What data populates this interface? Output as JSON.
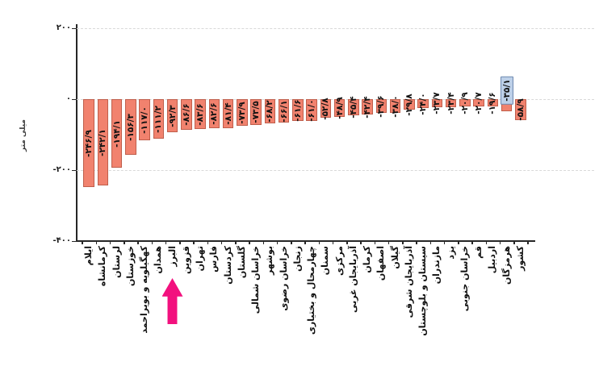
{
  "chart_data": {
    "type": "bar",
    "title": "",
    "unit_label": "میلی متر",
    "ylim": [
      -400,
      200
    ],
    "grid": "horizontal dashed",
    "legend": "none",
    "bar_color": "#f1826e",
    "bar_border_color": "#bf5e4b",
    "grid_color": "#d9d9d9",
    "axis_color": "#262626",
    "yticks": [
      {
        "value": 200,
        "label": "۲۰۰"
      },
      {
        "value": 0,
        "label": "۰"
      },
      {
        "value": -200,
        "label": "-۲۰۰"
      },
      {
        "value": -400,
        "label": "-۴۰۰"
      }
    ],
    "categories": [
      "ایلام",
      "کرمانشاه",
      "لرستان",
      "خوزستان",
      "کهگیلویه و بویراحمد",
      "همدان",
      "البرز",
      "قزوین",
      "تهران",
      "فارس",
      "کردستان",
      "گلستان",
      "خراسان شمالی",
      "بوشهر",
      "خراسان رضوی",
      "زنجان",
      "چهارمحال و بختیاری",
      "سمنان",
      "مرکزی",
      "آذربایجان غربی",
      "کرمان",
      "اصفهان",
      "گیلان",
      "آذربایجان شرقی",
      "سیستان و بلوچستان",
      "مازندران",
      "یزد",
      "خراسان جنوبی",
      "قم",
      "اردبیل",
      "هرمزگان",
      "کشور"
    ],
    "values": [
      -246.9,
      -242.1,
      -194.1,
      -156.3,
      -117.0,
      -111.2,
      -92.3,
      -86.6,
      -83.6,
      -82.6,
      -81.4,
      -73.9,
      -73.5,
      -68.2,
      -66.1,
      -61.6,
      -61.0,
      -52.8,
      -48.9,
      -45.4,
      -42.4,
      -39.6,
      -38.0,
      -29.8,
      -24.0,
      -23.7,
      -23.4,
      -20.9,
      -20.7,
      -19.6,
      -35.1,
      -58.9
    ],
    "value_labels": [
      "-۲۴۶/۹",
      "-۲۴۲/۱",
      "-۱۹۴/۱",
      "-۱۵۶/۳",
      "-۱۱۷/۰",
      "-۱۱۱/۲",
      "-۹۲/۳",
      "-۸۶/۶",
      "-۸۳/۶",
      "-۸۲/۶",
      "-۸۱/۴",
      "-۷۳/۹",
      "-۷۳/۵",
      "-۶۸/۲",
      "-۶۶/۱",
      "-۶۱/۶",
      "-۶۱/۰",
      "-۵۲/۸",
      "-۴۸/۹",
      "-۴۵/۴",
      "-۴۲/۴",
      "-۳۹/۶",
      "-۳۸/۰",
      "-۲۹/۸",
      "-۲۴/۰",
      "-۲۳/۷",
      "-۲۳/۴",
      "-۲۰/۹",
      "-۲۰/۷",
      "-۱۹/۶",
      "-۳۵/۱",
      "-۵۸/۹"
    ],
    "highlighted_label": {
      "index": 30,
      "category": "هرمزگان",
      "label": "-۳۵/۱",
      "bg": "#bdd0e8",
      "border": "#6e89b0"
    },
    "annotation_arrow": {
      "index": 6,
      "points_to": "البرز",
      "color": "#f2117e",
      "direction": "up"
    }
  }
}
